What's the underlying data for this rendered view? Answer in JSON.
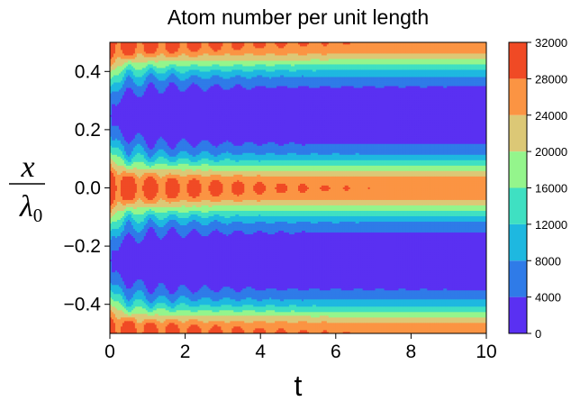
{
  "chart_data": {
    "type": "heatmap",
    "title": "Atom number per unit length",
    "xlabel": "t",
    "ylabel": {
      "numerator": "x",
      "denominator_symbol": "λ",
      "denominator_subscript": "0"
    },
    "xlim": [
      0,
      10
    ],
    "ylim": [
      -0.5,
      0.5
    ],
    "x_ticks": [
      0,
      2,
      4,
      6,
      8,
      10
    ],
    "y_ticks": [
      0.4,
      0.2,
      0.0,
      -0.2,
      -0.4
    ],
    "y_tick_labels": [
      "0.4",
      "0.2",
      "0.0",
      "−0.2",
      "−0.4"
    ],
    "colorbar": {
      "levels": [
        0,
        4000,
        8000,
        12000,
        16000,
        20000,
        24000,
        28000,
        32000
      ],
      "colors": [
        "#5a30f2",
        "#2f7be8",
        "#1eb8e0",
        "#3fe0c2",
        "#94f58c",
        "#dcc876",
        "#fb9443",
        "#f04a25"
      ],
      "colormap": "rainbow"
    },
    "model": {
      "peak_positions": [
        -0.5,
        0.0,
        0.5
      ],
      "peak_width": 0.07,
      "steady_peak_value": 26000,
      "initial_peak_value": 31000,
      "oscillation_period": 0.58,
      "oscillation_damping_time": 2.2,
      "first_pulse_time": 0.5,
      "empty_region_value": 1500
    }
  }
}
